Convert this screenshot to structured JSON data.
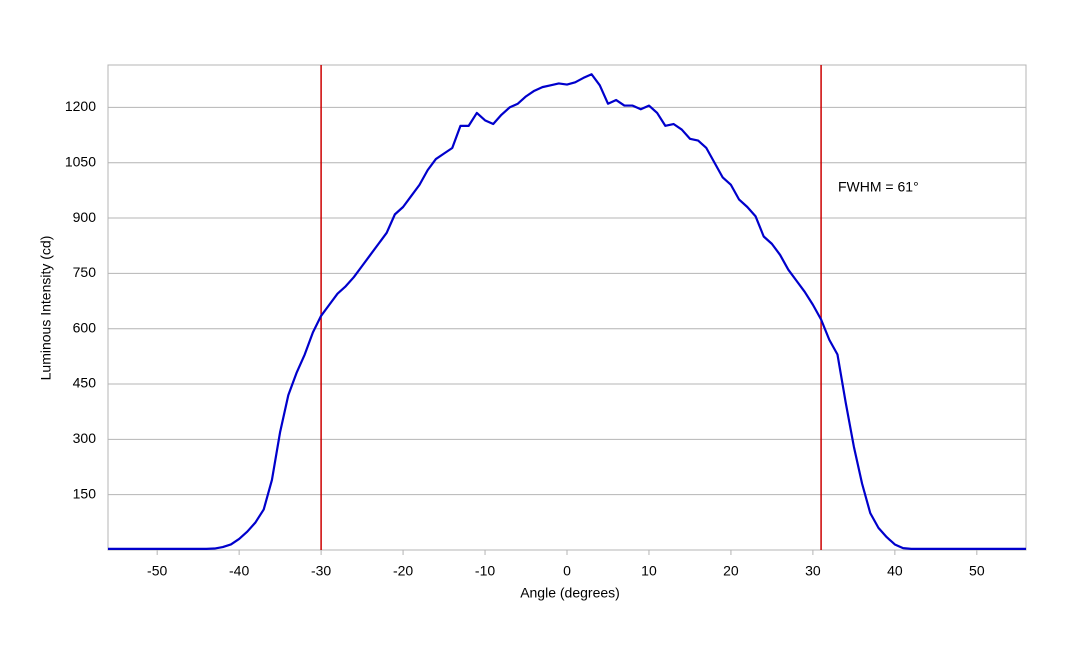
{
  "chart_data": {
    "type": "line",
    "x_label": "Angle (degrees)",
    "y_label": "Luminous Intensity (cd)",
    "annotation": "FWHM = 61°",
    "x": [
      -56,
      -55,
      -54,
      -53,
      -52,
      -51,
      -50,
      -49,
      -48,
      -47,
      -46,
      -45,
      -44,
      -43,
      -42,
      -41,
      -40,
      -39,
      -38,
      -37,
      -36,
      -35,
      -34,
      -33,
      -32,
      -31,
      -30,
      -29,
      -28,
      -27,
      -26,
      -25,
      -24,
      -23,
      -22,
      -21,
      -20,
      -19,
      -18,
      -17,
      -16,
      -15,
      -14,
      -13,
      -12,
      -11,
      -10,
      -9,
      -8,
      -7,
      -6,
      -5,
      -4,
      -3,
      -2,
      -1,
      0,
      1,
      2,
      3,
      4,
      5,
      6,
      7,
      8,
      9,
      10,
      11,
      12,
      13,
      14,
      15,
      16,
      17,
      18,
      19,
      20,
      21,
      22,
      23,
      24,
      25,
      26,
      27,
      28,
      29,
      30,
      31,
      32,
      33,
      34,
      35,
      36,
      37,
      38,
      39,
      40,
      41,
      42,
      43,
      44,
      45,
      46,
      47,
      48,
      49,
      50,
      51,
      52,
      53,
      54,
      55,
      56
    ],
    "series": [
      {
        "name": "Intensity",
        "color": "#0000cc",
        "values": [
          3,
          3,
          3,
          3,
          3,
          3,
          3,
          3,
          3,
          3,
          3,
          3,
          3,
          4,
          8,
          15,
          30,
          50,
          75,
          110,
          190,
          320,
          420,
          480,
          530,
          590,
          635,
          665,
          695,
          715,
          740,
          770,
          800,
          830,
          860,
          910,
          930,
          960,
          990,
          1030,
          1060,
          1075,
          1090,
          1150,
          1150,
          1185,
          1165,
          1155,
          1180,
          1200,
          1210,
          1230,
          1245,
          1255,
          1260,
          1265,
          1262,
          1268,
          1280,
          1290,
          1260,
          1210,
          1220,
          1205,
          1205,
          1195,
          1205,
          1185,
          1150,
          1155,
          1140,
          1115,
          1110,
          1090,
          1050,
          1010,
          990,
          950,
          930,
          905,
          850,
          830,
          800,
          760,
          730,
          700,
          665,
          625,
          570,
          530,
          400,
          280,
          180,
          100,
          60,
          35,
          15,
          5,
          3,
          3,
          3,
          3,
          3,
          3,
          3,
          3,
          3,
          3,
          3,
          3,
          3,
          3,
          3
        ]
      }
    ],
    "vlines": [
      -30,
      31
    ],
    "vline_color": "#cc0000",
    "xlim": [
      -56,
      56
    ],
    "ylim": [
      0,
      1315
    ],
    "xticks": [
      -50,
      -40,
      -30,
      -20,
      -10,
      0,
      10,
      20,
      30,
      40,
      50
    ],
    "yticks": [
      150,
      300,
      450,
      600,
      750,
      900,
      1050,
      1200
    ],
    "grid": true
  }
}
